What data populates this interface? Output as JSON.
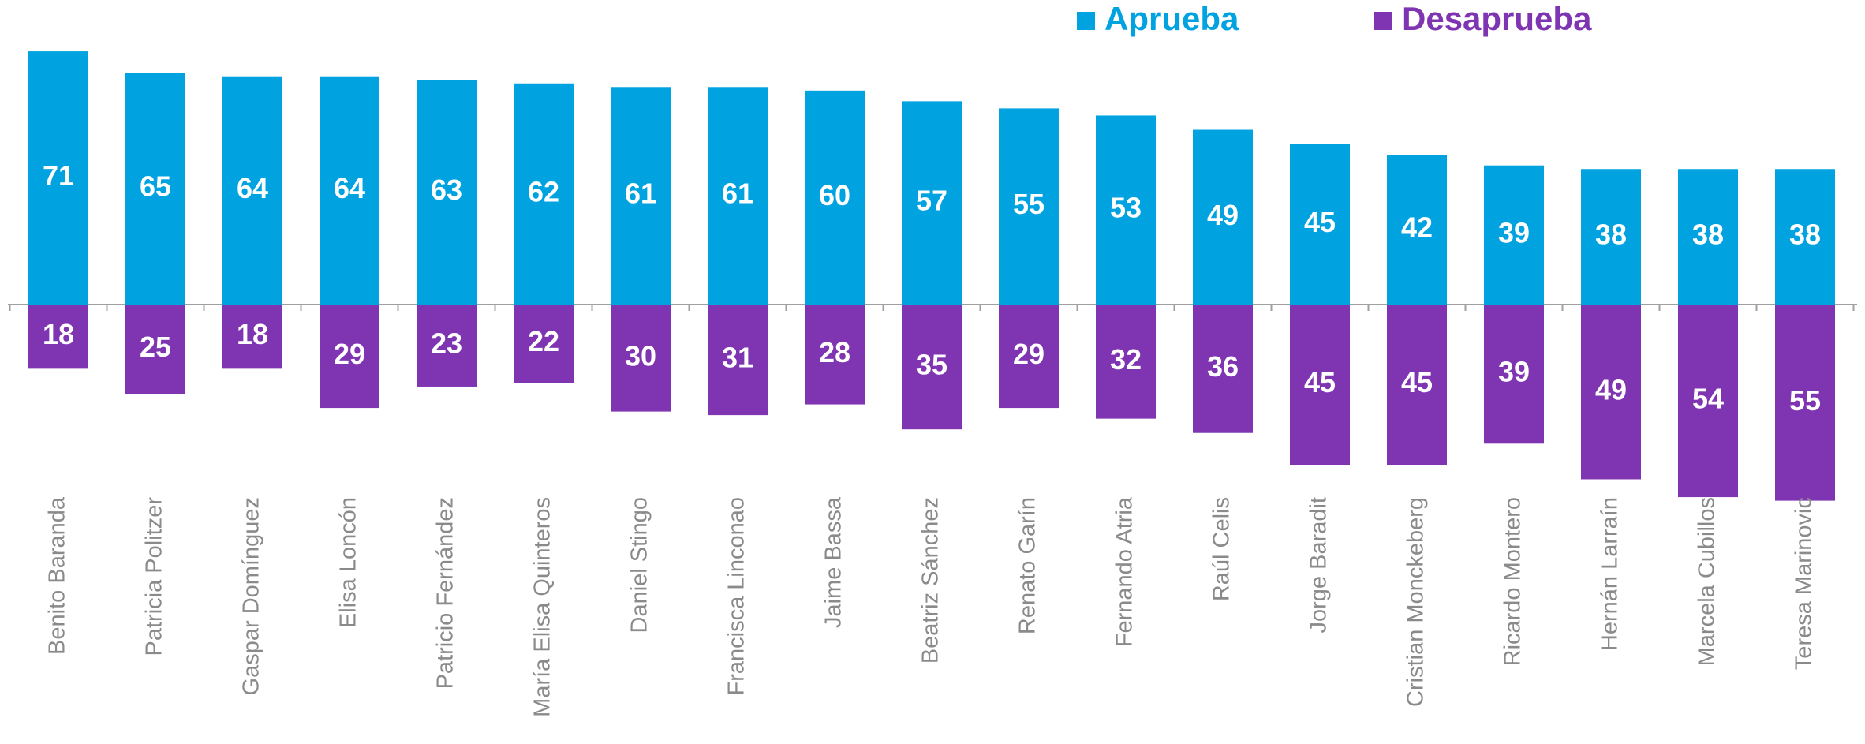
{
  "chart_data": {
    "type": "diverging-bar",
    "categories": [
      "Benito Baranda",
      "Patricia Politzer",
      "Gaspar Domínguez",
      "Elisa Loncón",
      "Patricio Fernández",
      "María Elisa Quinteros",
      "Daniel Stingo",
      "Francisca Linconao",
      "Jaime Bassa",
      "Beatriz Sánchez",
      "Renato Garín",
      "Fernando Atria",
      "Raúl Celis",
      "Jorge Baradit",
      "Cristian Monckeberg",
      "Ricardo Montero",
      "Hernán Larraín",
      "Marcela Cubillos",
      "Teresa Marinovic"
    ],
    "series": [
      {
        "name": "Aprueba",
        "color": "#00a3e0",
        "direction": "up",
        "values": [
          71,
          65,
          64,
          64,
          63,
          62,
          61,
          61,
          60,
          57,
          55,
          53,
          49,
          45,
          42,
          39,
          38,
          38,
          38
        ]
      },
      {
        "name": "Desaprueba",
        "color": "#7f35b2",
        "direction": "down",
        "values": [
          18,
          25,
          18,
          29,
          23,
          22,
          30,
          31,
          28,
          35,
          29,
          32,
          36,
          45,
          45,
          39,
          49,
          54,
          55
        ]
      }
    ]
  }
}
